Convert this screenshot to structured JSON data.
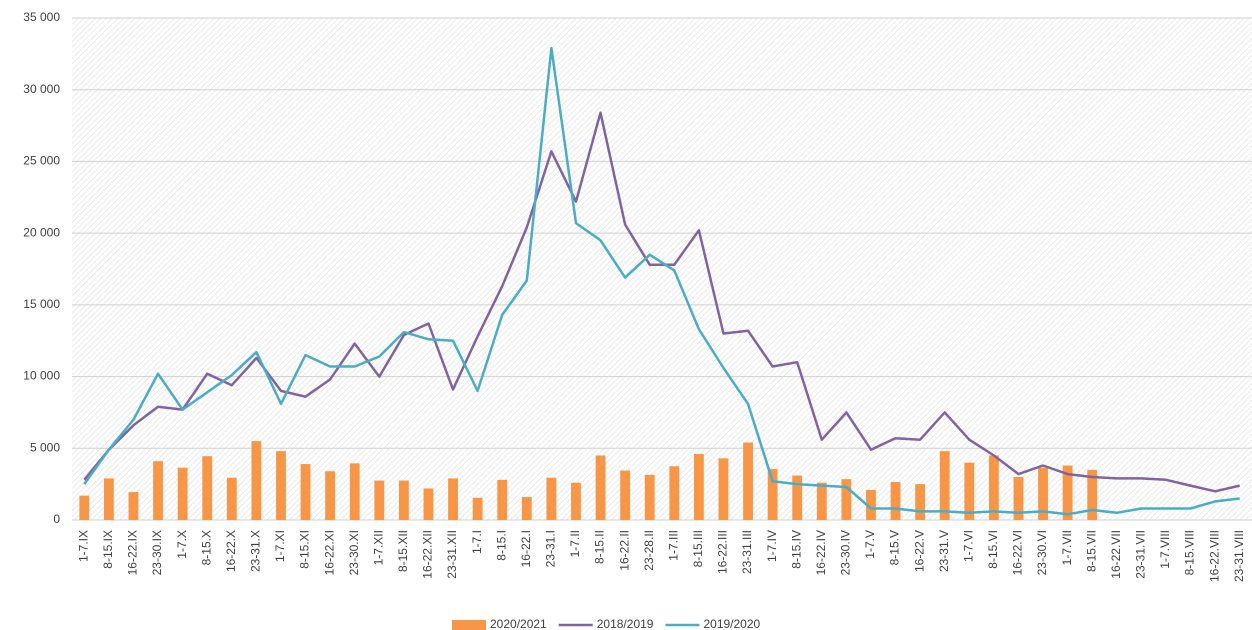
{
  "chart_data": {
    "type": "bar-line",
    "categories": [
      "1-7.IX",
      "8-15.IX",
      "16-22.IX",
      "23-30.IX",
      "1-7.X",
      "8-15.X",
      "16-22.X",
      "23-31.X",
      "1-7.XI",
      "8-15.XI",
      "16-22.XI",
      "23-30.XI",
      "1-7.XII",
      "8-15.XII",
      "16-22.XII",
      "23-31.XII",
      "1-7.I",
      "8-15.I",
      "16-22.I",
      "23-31.I",
      "1-7.II",
      "8-15.II",
      "16-22.II",
      "23-28.II",
      "1-7.III",
      "8-15.III",
      "16-22.III",
      "23-31.III",
      "1-7.IV",
      "8-15.IV",
      "16-22.IV",
      "23-30.IV",
      "1-7.V",
      "8-15.V",
      "16-22.V",
      "23-31.V",
      "1-7.VI",
      "8-15.VI",
      "16-22.VI",
      "23-30.VI",
      "1-7.VII",
      "8-15.VII",
      "16-22.VII",
      "23-31.VII",
      "1-7.VIII",
      "8-15.VIII",
      "16-22.VIII",
      "23-31.VIII"
    ],
    "series": [
      {
        "name": "2020/2021",
        "type": "bar",
        "color": "#f79646",
        "values": [
          1700,
          2900,
          1950,
          4100,
          3650,
          4450,
          2950,
          5500,
          4800,
          3900,
          3400,
          3950,
          2750,
          2750,
          2200,
          2900,
          1550,
          2800,
          1600,
          2950,
          2600,
          4500,
          3450,
          3150,
          3750,
          4600,
          4300,
          5400,
          3550,
          3100,
          2600,
          2850,
          2100,
          2650,
          2500,
          4800,
          4000,
          4500,
          3000,
          3650,
          3800,
          3500,
          null,
          null,
          null,
          null,
          null,
          null
        ]
      },
      {
        "name": "2018/2019",
        "type": "line",
        "color": "#8064a2",
        "values": [
          2800,
          4900,
          6600,
          7900,
          7700,
          10200,
          9400,
          11300,
          9000,
          8600,
          9800,
          12300,
          10000,
          12900,
          13700,
          9100,
          12800,
          16300,
          20400,
          25700,
          22200,
          28400,
          20600,
          17800,
          17800,
          20200,
          13000,
          13200,
          10700,
          11000,
          5600,
          7500,
          4900,
          5700,
          5600,
          7500,
          5600,
          4500,
          3200,
          3800,
          3200,
          3000,
          2900,
          2900,
          2800,
          2400,
          2000,
          2400
        ]
      },
      {
        "name": "2019/2020",
        "type": "line",
        "color": "#4bacc6",
        "values": [
          2500,
          4900,
          7000,
          10200,
          7700,
          8900,
          10100,
          11700,
          8100,
          11500,
          10700,
          10700,
          11400,
          13100,
          12600,
          12500,
          9000,
          14300,
          16700,
          32900,
          20700,
          19500,
          16900,
          18500,
          17400,
          13300,
          10600,
          8100,
          2700,
          2500,
          2400,
          2300,
          800,
          800,
          600,
          600,
          500,
          600,
          500,
          600,
          400,
          700,
          500,
          800,
          800,
          800,
          1300,
          1500
        ]
      }
    ],
    "ylim": [
      0,
      35000
    ],
    "yticks": [
      0,
      {
        "value": 5000,
        "label": "5 000"
      },
      {
        "value": 10000,
        "label": "10 000"
      },
      {
        "value": 15000,
        "label": "15 000"
      },
      {
        "value": 20000,
        "label": "20 000"
      },
      {
        "value": 25000,
        "label": "25 000"
      },
      {
        "value": 30000,
        "label": "30 000"
      },
      {
        "value": 35000,
        "label": "35 000"
      }
    ],
    "grid": true
  }
}
